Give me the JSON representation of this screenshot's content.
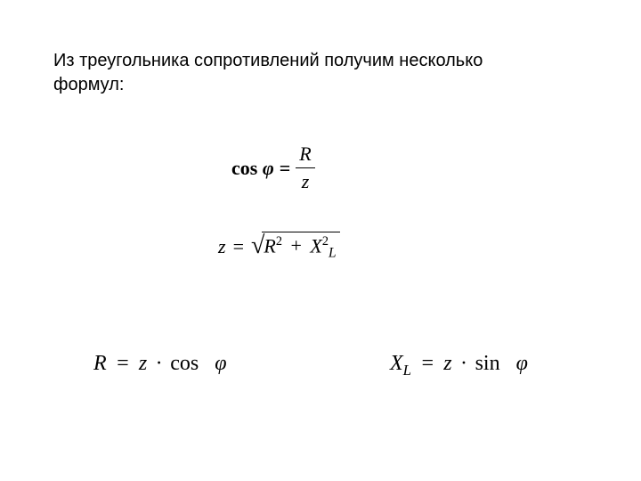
{
  "intro": {
    "text": "Из треугольника сопротивлений получим несколько формул:",
    "fontsize": 20,
    "color": "#000000"
  },
  "formulas": {
    "cos_phi": {
      "lhs_func": "cos",
      "lhs_var": "φ",
      "eq": "=",
      "numerator": "R",
      "denominator": "z",
      "fontsize": 22,
      "fontweight_lhs": "bold"
    },
    "z_impedance": {
      "lhs": "z",
      "eq": "=",
      "radicand_term1_base": "R",
      "radicand_term1_exp": "2",
      "radicand_plus": "+",
      "radicand_term2_base": "X",
      "radicand_term2_sub": "L",
      "radicand_term2_exp": "2",
      "fontsize": 22
    },
    "r_formula": {
      "lhs": "R",
      "eq": "=",
      "rhs_var": "z",
      "dot": "·",
      "rhs_func": "cos",
      "rhs_arg": "φ",
      "fontsize": 24
    },
    "xl_formula": {
      "lhs_base": "X",
      "lhs_sub": "L",
      "eq": "=",
      "rhs_var": "z",
      "dot": "·",
      "rhs_func": "sin",
      "rhs_arg": "φ",
      "fontsize": 24
    }
  },
  "colors": {
    "background": "#ffffff",
    "text": "#000000"
  }
}
